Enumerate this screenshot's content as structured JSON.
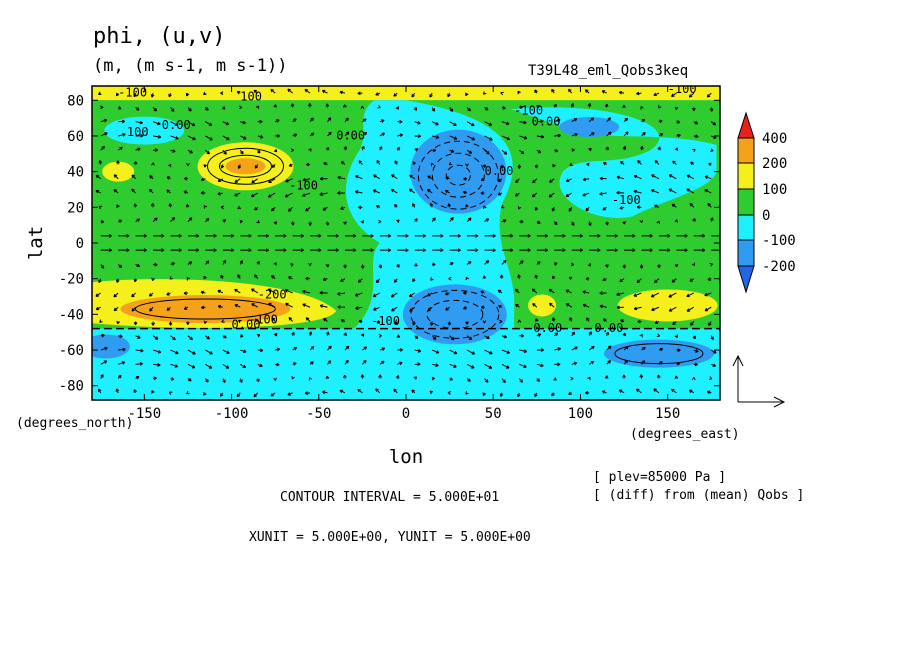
{
  "chart_data": {
    "type": "heatmap",
    "title": "phi, (u,v)",
    "units": "(m, (m s-1, m s-1))",
    "run_label": "T39L48_eml_Qobs3keq",
    "xlabel": "lon",
    "ylabel": "lat",
    "xunit_label": "(degrees_east)",
    "yunit_label": "(degrees_north)",
    "xlim": [
      -180,
      180
    ],
    "ylim": [
      -88,
      88
    ],
    "xticks": [
      "-150",
      "-100",
      "-50",
      "0",
      "50",
      "100",
      "150"
    ],
    "xtick_values": [
      -150,
      -100,
      -50,
      0,
      50,
      100,
      150
    ],
    "yticks": [
      "80",
      "60",
      "40",
      "20",
      "0",
      "-20",
      "-40",
      "-60",
      "-80"
    ],
    "ytick_values": [
      80,
      60,
      40,
      20,
      0,
      -20,
      -40,
      -60,
      -80
    ],
    "colorbar": {
      "labels": [
        "400",
        "200",
        "100",
        "0",
        "-100",
        "-200"
      ],
      "colors": [
        "#e8201e",
        "#f5a21b",
        "#f5f01c",
        "#2fcc2f",
        "#1ff0ff",
        "#2f9cf2",
        "#2266e6"
      ]
    },
    "features": [
      {
        "lon": -90,
        "lat": 43,
        "value": 220
      },
      {
        "lon": -110,
        "lat": -38,
        "value": 250
      },
      {
        "lon": 150,
        "lat": -35,
        "value": 120
      },
      {
        "lon": 78,
        "lat": -35,
        "value": 120
      },
      {
        "lon": -165,
        "lat": 40,
        "value": 110
      },
      {
        "lon": 30,
        "lat": 38,
        "value": -260
      },
      {
        "lon": 30,
        "lat": -40,
        "value": -220
      },
      {
        "lon": 155,
        "lat": -62,
        "value": -230
      },
      {
        "lon": 110,
        "lat": 66,
        "value": -120
      },
      {
        "lon": -170,
        "lat": -60,
        "value": -120
      },
      {
        "lon": 110,
        "lat": 30,
        "value": -60
      }
    ],
    "contour_labels": [
      "100",
      "-100",
      "0.00",
      "0.00",
      "-100",
      "0.00",
      "-100",
      "0.00",
      "-100",
      "-200",
      "-100",
      "0.00",
      "-100",
      "0.00",
      "0.00",
      "-100",
      "100"
    ]
  },
  "notes": {
    "contour_interval": "CONTOUR INTERVAL = 5.000E+01",
    "unit_vectors": "XUNIT = 5.000E+00, YUNIT = 5.000E+00",
    "plev": "[ plev=85000 Pa ]",
    "diff": "[ (diff) from (mean) Qobs ]"
  }
}
